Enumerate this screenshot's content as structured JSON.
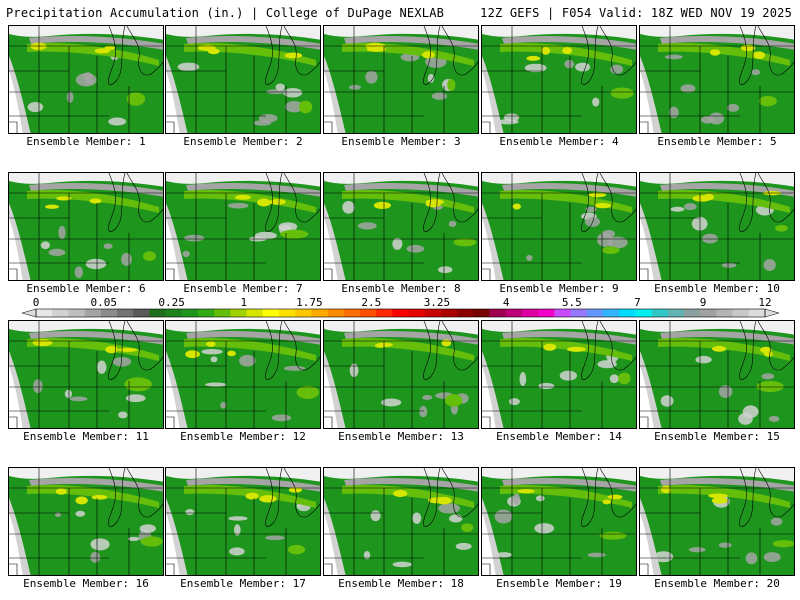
{
  "header": {
    "title": "Precipitation Accumulation (in.) | College of DuPage NEXLAB",
    "valid": "12Z GEFS | F054 Valid: 18Z WED NOV 19 2025"
  },
  "member_prefix": "Ensemble Member:",
  "members": [
    {
      "label": "Ensemble Member: 1",
      "number": 1
    },
    {
      "label": "Ensemble Member: 2",
      "number": 2
    },
    {
      "label": "Ensemble Member: 3",
      "number": 3
    },
    {
      "label": "Ensemble Member: 4",
      "number": 4
    },
    {
      "label": "Ensemble Member: 5",
      "number": 5
    },
    {
      "label": "Ensemble Member: 6",
      "number": 6
    },
    {
      "label": "Ensemble Member: 7",
      "number": 7
    },
    {
      "label": "Ensemble Member: 8",
      "number": 8
    },
    {
      "label": "Ensemble Member: 9",
      "number": 9
    },
    {
      "label": "Ensemble Member: 10",
      "number": 10
    },
    {
      "label": "Ensemble Member: 11",
      "number": 11
    },
    {
      "label": "Ensemble Member: 12",
      "number": 12
    },
    {
      "label": "Ensemble Member: 13",
      "number": 13
    },
    {
      "label": "Ensemble Member: 14",
      "number": 14
    },
    {
      "label": "Ensemble Member: 15",
      "number": 15
    },
    {
      "label": "Ensemble Member: 16",
      "number": 16
    },
    {
      "label": "Ensemble Member: 17",
      "number": 17
    },
    {
      "label": "Ensemble Member: 18",
      "number": 18
    },
    {
      "label": "Ensemble Member: 19",
      "number": 19
    },
    {
      "label": "Ensemble Member: 20",
      "number": 20
    }
  ],
  "colorbar": {
    "tick_labels": [
      "0",
      "0.05",
      "0.25",
      "1",
      "1.75",
      "2.5",
      "3.25",
      "4",
      "5.5",
      "7",
      "9",
      "12"
    ],
    "colors": [
      "#e6e6e6",
      "#d2d2d2",
      "#bebebe",
      "#a5a5a5",
      "#8c8c8c",
      "#737373",
      "#5a5a5a",
      "#1e6e1e",
      "#1e821e",
      "#1e961e",
      "#32aa14",
      "#64be0a",
      "#a0d200",
      "#d7e600",
      "#ffff00",
      "#ffe100",
      "#ffc800",
      "#ffaa00",
      "#ff8c00",
      "#ff6e00",
      "#ff5000",
      "#ff2800",
      "#ff0000",
      "#e60000",
      "#c80000",
      "#aa0000",
      "#8c0000",
      "#780000",
      "#a00050",
      "#be0078",
      "#dc00a0",
      "#f000c8",
      "#c84bff",
      "#9678ff",
      "#6496ff",
      "#32b4ff",
      "#00dcff",
      "#00f0f0",
      "#32c8c8",
      "#64b4b4",
      "#8ca0a0",
      "#a0a0a0",
      "#b4b4b4",
      "#c8c8c8",
      "#dcdcdc"
    ]
  },
  "map_colors": {
    "green_dark": "#1e6e1e",
    "green": "#1e961e",
    "green_light": "#64be0a",
    "yellow": "#d7e600",
    "gray_light": "#d2d2d2",
    "gray": "#a5a5a5",
    "gray_dark": "#737373"
  }
}
